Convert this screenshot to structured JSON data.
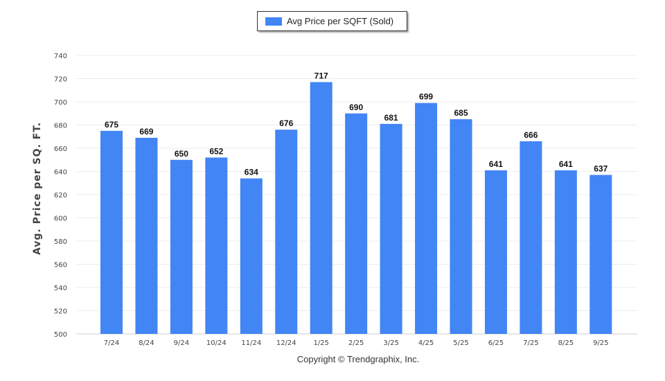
{
  "legend": {
    "label": "Avg Price per SQFT (Sold)",
    "color": "#4285f4"
  },
  "footer": {
    "text": "Copyright © Trendgraphix, Inc."
  },
  "chart_data": {
    "type": "bar",
    "title": "",
    "xlabel": "",
    "ylabel": "Avg. Price per SQ. FT.",
    "ylim": [
      500,
      740
    ],
    "yticks": [
      500,
      520,
      540,
      560,
      580,
      600,
      620,
      640,
      660,
      680,
      700,
      720,
      740
    ],
    "grid": true,
    "legend_position": "top-center",
    "categories": [
      "7/24",
      "8/24",
      "9/24",
      "10/24",
      "11/24",
      "12/24",
      "1/25",
      "2/25",
      "3/25",
      "4/25",
      "5/25",
      "6/25",
      "7/25",
      "8/25",
      "9/25"
    ],
    "series": [
      {
        "name": "Avg Price per SQFT (Sold)",
        "color": "#4285f4",
        "values": [
          675,
          669,
          650,
          652,
          634,
          676,
          717,
          690,
          681,
          699,
          685,
          641,
          666,
          641,
          637
        ]
      }
    ]
  }
}
